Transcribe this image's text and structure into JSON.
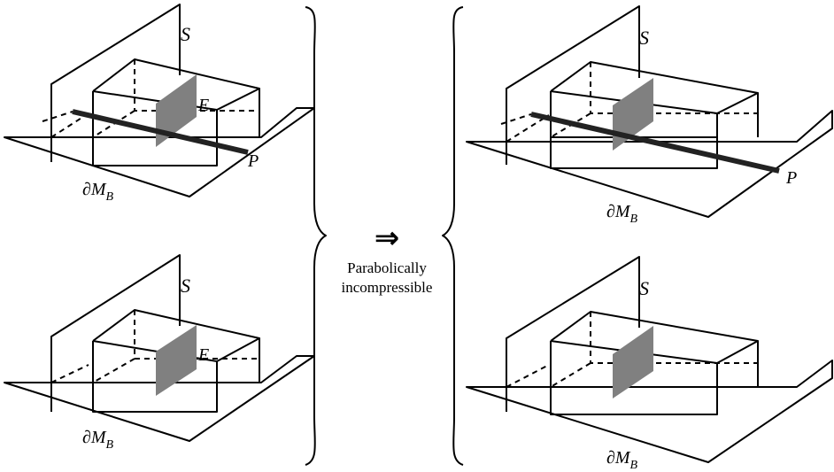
{
  "labels": {
    "S": "S",
    "E": "E",
    "P": "P",
    "boundary_prefix": "∂M",
    "boundary_sub": "B"
  },
  "implication": {
    "arrow": "⇒",
    "line1": "Parabolically",
    "line2": "incompressible"
  },
  "colors": {
    "shade": "#808080",
    "line": "#000000",
    "curve_P": "#222222"
  }
}
